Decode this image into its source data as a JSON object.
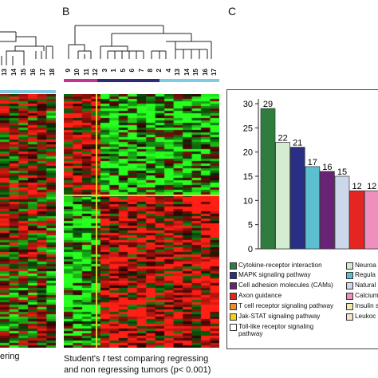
{
  "panels": {
    "b": "B",
    "c": "C"
  },
  "panel_a": {
    "col_labels": [
      "13",
      "14",
      "15",
      "16",
      "17",
      "18"
    ],
    "caption": "ering"
  },
  "panel_b": {
    "col_labels": [
      "9",
      "10",
      "11",
      "12",
      "3",
      "1",
      "5",
      "6",
      "7",
      "8",
      "2",
      "4",
      "13",
      "14",
      "15",
      "16",
      "17"
    ],
    "caption_prefix": "Student's ",
    "caption_t": "t",
    "caption_rest": " test comparing regressing",
    "caption_line2": "and non regressing tumors (p< 0.001)"
  },
  "chart_data": {
    "type": "bar",
    "yticks": [
      0,
      5,
      10,
      15,
      20,
      25,
      30
    ],
    "ylim": [
      0,
      30
    ],
    "values": [
      29,
      22,
      21,
      17,
      16,
      15,
      12,
      12
    ],
    "value_labels": [
      "29",
      "22",
      "21",
      "17",
      "16",
      "15",
      "12",
      "12"
    ],
    "colors": [
      "#2e7d3e",
      "#d4ecd0",
      "#2a2f86",
      "#5bbfcf",
      "#6a2277",
      "#cbd8ec",
      "#e52521",
      "#ef8fbe"
    ],
    "legend": [
      {
        "label": "Cytokine-receptor interaction",
        "color": "#2e7d3e"
      },
      {
        "label": "MAPK signaling pathway",
        "color": "#2a2f86"
      },
      {
        "label": "Cell adhesion molecules (CAMs)",
        "color": "#6a2277"
      },
      {
        "label": "Axon guidance",
        "color": "#e52521"
      },
      {
        "label": "T cell receptor signaling pathway",
        "color": "#f28c28"
      },
      {
        "label": "Jak-STAT signaling pathway",
        "color": "#f2d21c"
      },
      {
        "label": "Toll-like receptor signaling pathway",
        "color": "#ffffff"
      },
      {
        "label": "Neuroa",
        "color": "#d4ecd0"
      },
      {
        "label": "Regula",
        "color": "#5bbfcf"
      },
      {
        "label": "Natural",
        "color": "#cbd8ec"
      },
      {
        "label": "Calcium",
        "color": "#ef8fbe"
      },
      {
        "label": "Insulin s",
        "color": "#f5e9a6"
      },
      {
        "label": "Leukoc",
        "color": "#f5e0c8"
      }
    ]
  }
}
